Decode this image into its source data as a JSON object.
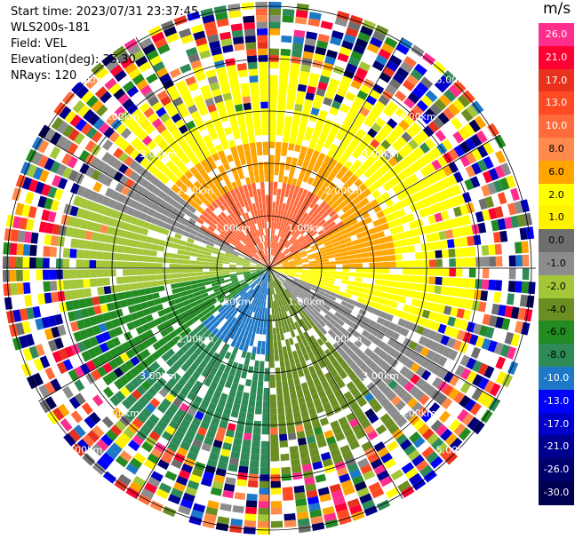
{
  "info": {
    "start_time": "Start time: 2023/07/31 23:37:45",
    "instrument": "WLS200s-181",
    "field": "Field: VEL",
    "elevation": "Elevation(deg): 35.30",
    "nrays": "NRays: 120"
  },
  "colorbar": {
    "unit": "m/s",
    "levels": [
      {
        "label": "26.0",
        "color": "#ff2d8c"
      },
      {
        "label": "21.0",
        "color": "#ff0033"
      },
      {
        "label": "17.0",
        "color": "#e8321e"
      },
      {
        "label": "13.0",
        "color": "#ff4a24"
      },
      {
        "label": "10.0",
        "color": "#ff6a3c"
      },
      {
        "label": "8.0",
        "color": "#ff8a4c"
      },
      {
        "label": "6.0",
        "color": "#ffa500"
      },
      {
        "label": "2.0",
        "color": "#ffff00"
      },
      {
        "label": "1.0",
        "color": "#fff200"
      },
      {
        "label": "0.0",
        "color": "#6e6e6e"
      },
      {
        "label": "-1.0",
        "color": "#8c8c8c"
      },
      {
        "label": "-2.0",
        "color": "#a4c639"
      },
      {
        "label": "-4.0",
        "color": "#6b8e23"
      },
      {
        "label": "-6.0",
        "color": "#228b22"
      },
      {
        "label": "-8.0",
        "color": "#2e8b57"
      },
      {
        "label": "-10.0",
        "color": "#1e78c8"
      },
      {
        "label": "-13.0",
        "color": "#0000ff"
      },
      {
        "label": "-17.0",
        "color": "#0000c8"
      },
      {
        "label": "-21.0",
        "color": "#000090"
      },
      {
        "label": "-26.0",
        "color": "#00006e"
      },
      {
        "label": "-30.0",
        "color": "#000050"
      }
    ]
  },
  "range_labels": [
    "1.00km",
    "2.00km",
    "3.00km",
    "4.00km",
    "5.00km"
  ]
}
